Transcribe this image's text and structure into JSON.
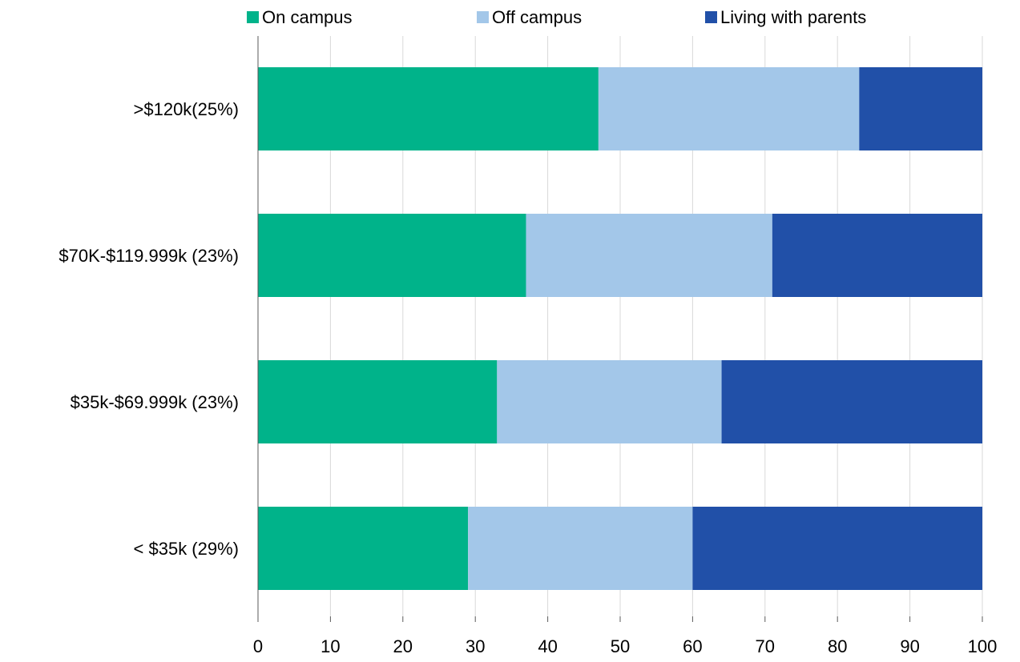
{
  "chart_data": {
    "type": "bar",
    "orientation": "horizontal",
    "stacked": true,
    "categories": [
      ">$120k(25%)",
      "$70K-$119.999k (23%)",
      "$35k-$69.999k (23%)",
      "< $35k (29%)"
    ],
    "series": [
      {
        "name": "On campus",
        "color": "#00b38a",
        "values": [
          47,
          37,
          33,
          29
        ]
      },
      {
        "name": "Off campus",
        "color": "#a3c7e9",
        "values": [
          36,
          34,
          31,
          31
        ]
      },
      {
        "name": "Living with parents",
        "color": "#2150a8",
        "values": [
          17,
          29,
          36,
          40
        ]
      }
    ],
    "xlim": [
      0,
      100
    ],
    "xticks": [
      0,
      10,
      20,
      30,
      40,
      50,
      60,
      70,
      80,
      90,
      100
    ],
    "grid": true,
    "legend": "top"
  }
}
